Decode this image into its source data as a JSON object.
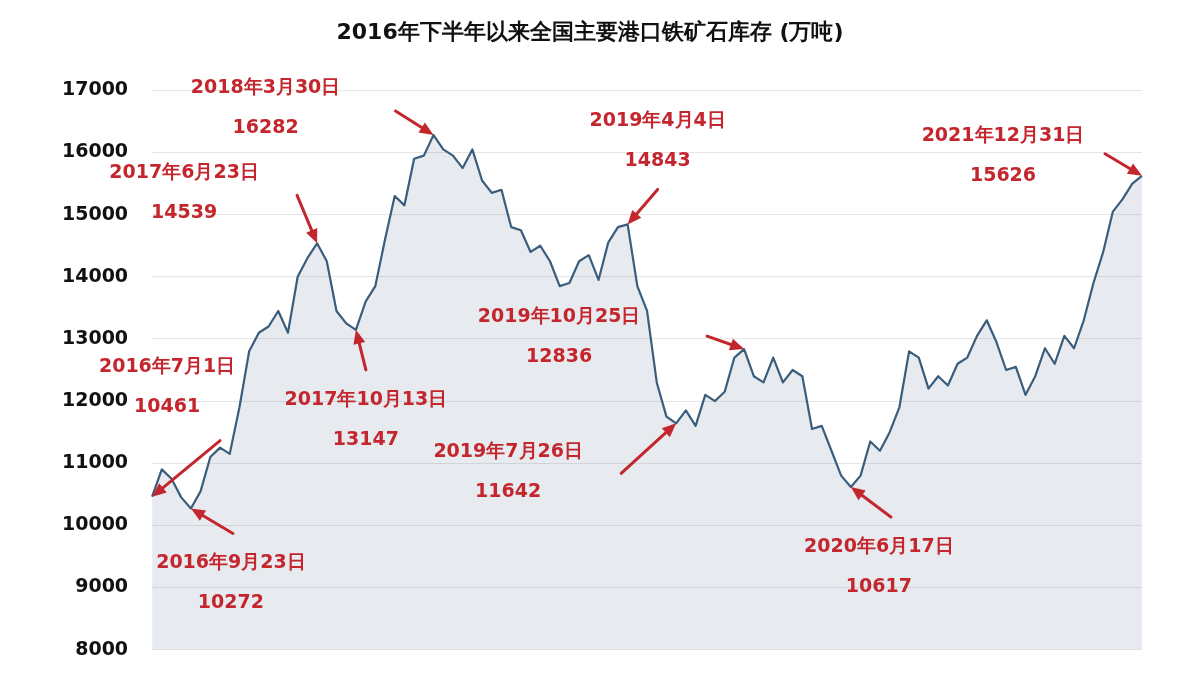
{
  "chart_data": {
    "type": "area",
    "title": "2016年下半年以来全国主要港口铁矿石库存 (万吨)",
    "categories": [
      null,
      null,
      null,
      null,
      null,
      null,
      null,
      null,
      null,
      null,
      null,
      null,
      null,
      null,
      null,
      null,
      null,
      null,
      null,
      null,
      null,
      null,
      null,
      null,
      null,
      null,
      null,
      null,
      null,
      null,
      null,
      null,
      null,
      null,
      null,
      null,
      null,
      null,
      null,
      null,
      null,
      null,
      null,
      null,
      null,
      null,
      null,
      null,
      null,
      null,
      null,
      null,
      null,
      null,
      null,
      null,
      null,
      null,
      null,
      null,
      null,
      null,
      null,
      null,
      null,
      null,
      null,
      null,
      null,
      null,
      null,
      null,
      null,
      null,
      null,
      null,
      null,
      null,
      null,
      null,
      null,
      null,
      null,
      null,
      null,
      null,
      null,
      null,
      null,
      null,
      null,
      null,
      null,
      null,
      null,
      null,
      null,
      null,
      null,
      null,
      null,
      null,
      null
    ],
    "series": [
      {
        "color": "#3b5d7c",
        "values": [
          10461,
          10900,
          10750,
          10450,
          10272,
          10550,
          11100,
          11250,
          11150,
          11900,
          12800,
          13100,
          13200,
          13450,
          13100,
          14000,
          14300,
          14539,
          14250,
          13450,
          13250,
          13147,
          13600,
          13850,
          14600,
          15300,
          15150,
          15900,
          15950,
          16282,
          16050,
          15950,
          15750,
          16050,
          15550,
          15350,
          15400,
          14800,
          14750,
          14400,
          14500,
          14250,
          13850,
          13900,
          14250,
          14350,
          13950,
          14550,
          14800,
          14843,
          13850,
          13450,
          12300,
          11750,
          11642,
          11850,
          11600,
          12100,
          12000,
          12150,
          12700,
          12836,
          12400,
          12300,
          12700,
          12300,
          12500,
          12400,
          11550,
          11600,
          11200,
          10800,
          10617,
          10800,
          11350,
          11200,
          11500,
          11900,
          12800,
          12700,
          12200,
          12400,
          12250,
          12600,
          12700,
          13050,
          13300,
          12950,
          12500,
          12550,
          12100,
          12400,
          12850,
          12600,
          13050,
          12850,
          13300,
          13900,
          14400,
          15050,
          15250,
          15500,
          15626
        ]
      }
    ],
    "ylim": [
      8000,
      17000
    ],
    "yticks": [
      8000,
      9000,
      10000,
      11000,
      12000,
      13000,
      14000,
      15000,
      16000,
      17000
    ],
    "tick_labels": "y",
    "grid": "y",
    "legend": false,
    "marker": "none",
    "line_style": "solid",
    "annotations": [
      "2016年7月1日\n10461",
      "2016年9月23日\n10272",
      "2017年6月23日\n14539",
      "2017年10月13日\n13147",
      "2018年3月30日\n16282",
      "2019年4月4日\n14843",
      "2019年7月26日\n11642",
      "2019年10月25日\n12836",
      "2020年6月17日\n10617",
      "2021年12月31日\n15626"
    ]
  }
}
